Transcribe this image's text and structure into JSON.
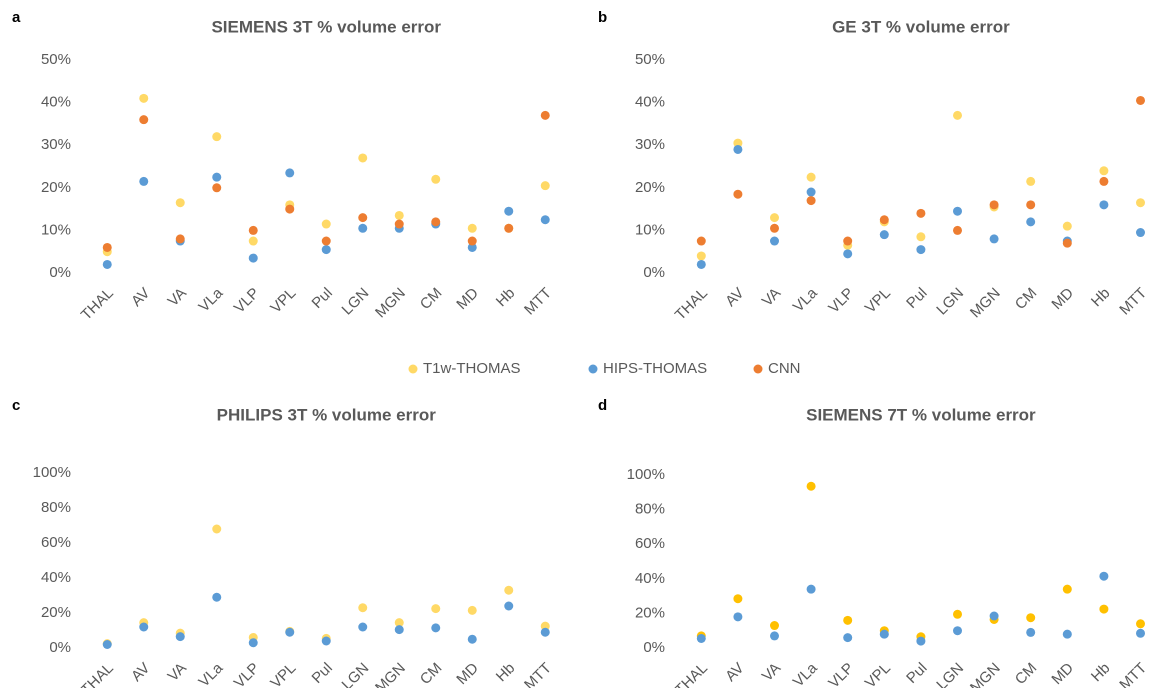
{
  "legend": {
    "series": [
      {
        "name": "T1w-THOMAS",
        "color": "#ffd966"
      },
      {
        "name": "HIPS-THOMAS",
        "color": "#5b9bd5"
      },
      {
        "name": "CNN",
        "color": "#ed7d31"
      }
    ]
  },
  "chart_data": [
    {
      "type": "scatter",
      "panel": "a",
      "title": "SIEMENS 3T  % volume error",
      "categories": [
        "THAL",
        "AV",
        "VA",
        "VLa",
        "VLP",
        "VPL",
        "Pul",
        "LGN",
        "MGN",
        "CM",
        "MD",
        "Hb",
        "MTT"
      ],
      "ylim": [
        0,
        50
      ],
      "yticks": [
        {
          "value": 0,
          "label": "0%"
        },
        {
          "value": 10,
          "label": "10%"
        },
        {
          "value": 20,
          "label": "20%"
        },
        {
          "value": 30,
          "label": "30%"
        },
        {
          "value": 40,
          "label": "40%"
        },
        {
          "value": 50,
          "label": "50%"
        }
      ],
      "series": [
        {
          "color": "#ffd966",
          "values": [
            5,
            41,
            16.5,
            32,
            7.5,
            16,
            11.5,
            27,
            13.5,
            22,
            10.5,
            10.5,
            20.5
          ]
        },
        {
          "color": "#5b9bd5",
          "values": [
            2,
            21.5,
            7.5,
            22.5,
            3.5,
            23.5,
            5.5,
            10.5,
            10.5,
            11.5,
            6,
            14.5,
            12.5
          ]
        },
        {
          "color": "#ed7d31",
          "values": [
            6,
            36,
            8,
            20,
            10,
            15,
            7.5,
            13,
            11.5,
            12,
            7.5,
            10.5,
            37
          ]
        }
      ]
    },
    {
      "type": "scatter",
      "panel": "b",
      "title": "GE 3T  % volume error",
      "categories": [
        "THAL",
        "AV",
        "VA",
        "VLa",
        "VLP",
        "VPL",
        "Pul",
        "LGN",
        "MGN",
        "CM",
        "MD",
        "Hb",
        "MTT"
      ],
      "ylim": [
        0,
        50
      ],
      "yticks": [
        {
          "value": 0,
          "label": "0%"
        },
        {
          "value": 10,
          "label": "10%"
        },
        {
          "value": 20,
          "label": "20%"
        },
        {
          "value": 30,
          "label": "30%"
        },
        {
          "value": 40,
          "label": "40%"
        },
        {
          "value": 50,
          "label": "50%"
        }
      ],
      "series": [
        {
          "color": "#ffd966",
          "values": [
            4,
            30.5,
            13,
            22.5,
            6.5,
            12,
            8.5,
            37,
            15.5,
            21.5,
            11,
            24,
            16.5
          ]
        },
        {
          "color": "#5b9bd5",
          "values": [
            2,
            29,
            7.5,
            19,
            4.5,
            9,
            5.5,
            14.5,
            8,
            12,
            7.5,
            16,
            9.5
          ]
        },
        {
          "color": "#ed7d31",
          "values": [
            7.5,
            18.5,
            10.5,
            17,
            7.5,
            12.5,
            14,
            10,
            16,
            16,
            7,
            21.5,
            40.5
          ]
        }
      ]
    },
    {
      "type": "scatter",
      "panel": "c",
      "title": "PHILIPS 3T  % volume error",
      "categories": [
        "THAL",
        "AV",
        "VA",
        "VLa",
        "VLP",
        "VPL",
        "Pul",
        "LGN",
        "MGN",
        "CM",
        "MD",
        "Hb",
        "MTT"
      ],
      "ylim": [
        0,
        100
      ],
      "yticks": [
        {
          "value": 0,
          "label": "0%"
        },
        {
          "value": 20,
          "label": "20%"
        },
        {
          "value": 40,
          "label": "40%"
        },
        {
          "value": 60,
          "label": "60%"
        },
        {
          "value": 80,
          "label": "80%"
        },
        {
          "value": 100,
          "label": "100%"
        }
      ],
      "series": [
        {
          "color": "#ffd966",
          "values": [
            2.5,
            14.5,
            8.5,
            68,
            6,
            9.5,
            5.5,
            23,
            14.5,
            22.5,
            21.5,
            33,
            12.5
          ]
        },
        {
          "color": "#5b9bd5",
          "values": [
            2,
            12,
            6.5,
            29,
            3,
            9,
            4,
            12,
            10.5,
            11.5,
            5,
            24,
            9
          ]
        }
      ]
    },
    {
      "type": "scatter",
      "panel": "d",
      "title": "SIEMENS 7T  % volume error",
      "categories": [
        "THAL",
        "AV",
        "VA",
        "VLa",
        "VLP",
        "VPL",
        "Pul",
        "LGN",
        "MGN",
        "CM",
        "MD",
        "Hb",
        "MTT"
      ],
      "ylim": [
        0,
        100
      ],
      "yticks": [
        {
          "value": 0,
          "label": "0%"
        },
        {
          "value": 20,
          "label": "20%"
        },
        {
          "value": 40,
          "label": "40%"
        },
        {
          "value": 60,
          "label": "60%"
        },
        {
          "value": 80,
          "label": "80%"
        },
        {
          "value": 100,
          "label": "100%"
        }
      ],
      "series": [
        {
          "color": "#ffc000",
          "values": [
            7,
            28.5,
            13,
            93.5,
            16,
            10,
            6.5,
            19.5,
            16.5,
            17.5,
            34,
            22.5,
            14
          ]
        },
        {
          "color": "#5b9bd5",
          "values": [
            5.5,
            18,
            7,
            34,
            6,
            8,
            4,
            10,
            18.5,
            9,
            8,
            41.5,
            8.5
          ]
        }
      ]
    }
  ]
}
